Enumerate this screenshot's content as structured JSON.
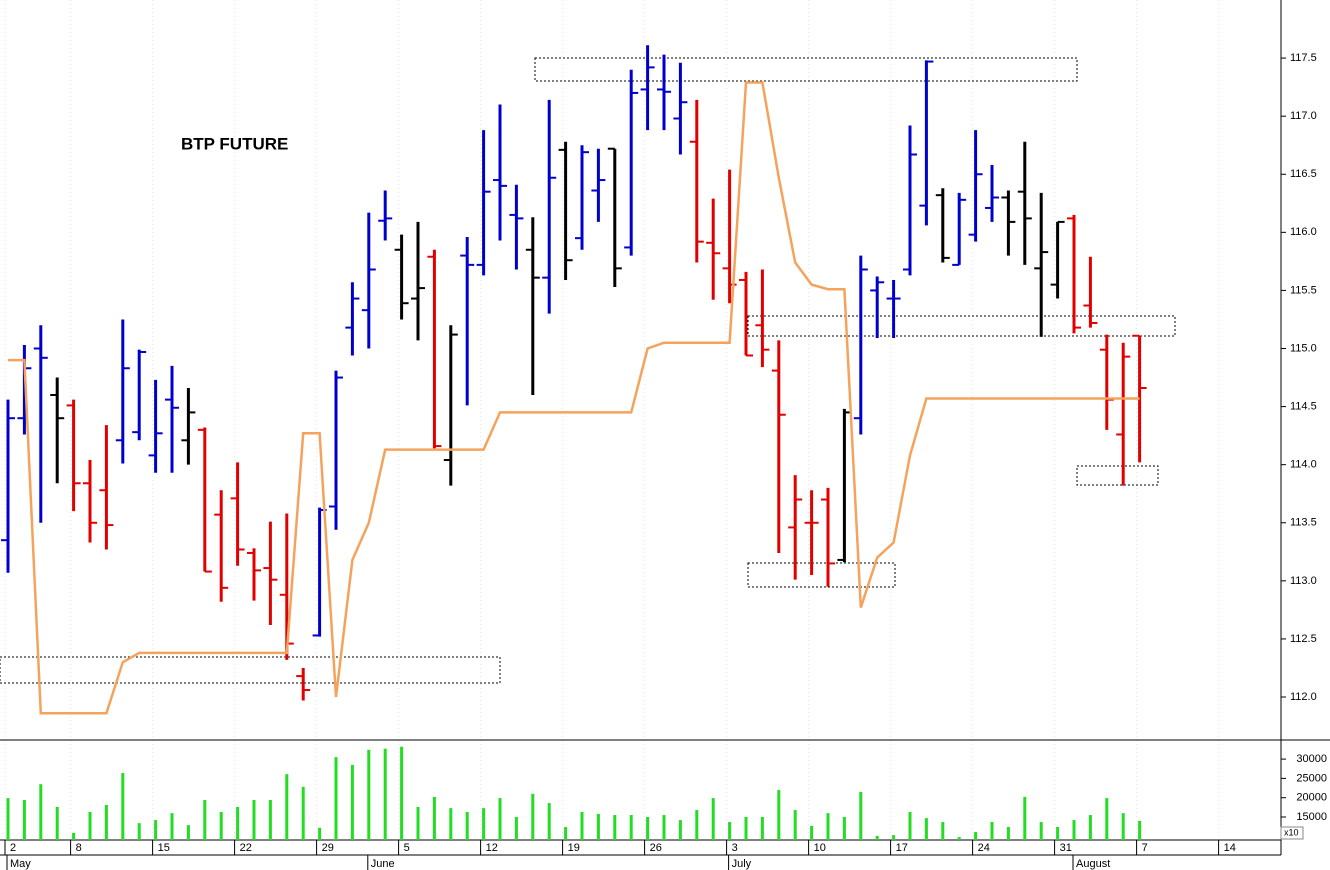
{
  "chart_data": [
    {
      "type": "ohlc",
      "title": "BTP FUTURE",
      "ylim": [
        111.63,
        118.0
      ],
      "yticks": [
        {
          "value": 112,
          "label": "112.0"
        },
        112.5,
        {
          "value": 113,
          "label": "113.0"
        },
        113.5,
        {
          "value": 114,
          "label": "114.0"
        },
        114.5,
        {
          "value": 115,
          "label": "115.0"
        },
        115.5,
        {
          "value": 116,
          "label": "116.0"
        },
        116.5,
        {
          "value": 117,
          "label": "117.0"
        },
        117.5
      ],
      "xgrid": true,
      "open": [
        113.35,
        114.4,
        115.0,
        114.6,
        114.51,
        113.84,
        113.78,
        114.21,
        114.28,
        114.08,
        114.56,
        114.21,
        114.3,
        113.57,
        113.71,
        113.24,
        113.11,
        112.88,
        112.18,
        112.53,
        113.64,
        115.18,
        115.33,
        116.1,
        115.85,
        115.43,
        115.79,
        114.04,
        115.8,
        115.72,
        116.45,
        116.15,
        115.85,
        115.61,
        116.71,
        115.95,
        116.36,
        116.72,
        115.87,
        117.23,
        117.23,
        116.98,
        116.78,
        115.91,
        115.69,
        115.59,
        115.2,
        114.81,
        113.46,
        113.5,
        113.7,
        113.18,
        114.4,
        115.5,
        115.43,
        115.68,
        116.23,
        116.32,
        115.72,
        115.98,
        116.21,
        116.3,
        116.35,
        115.69,
        115.55,
        116.12,
        115.37,
        114.99,
        114.26,
        115.11
      ],
      "high": [
        114.56,
        115.03,
        115.2,
        114.75,
        114.56,
        114.04,
        114.34,
        115.25,
        114.99,
        114.73,
        114.85,
        114.66,
        114.32,
        113.78,
        114.02,
        113.28,
        113.51,
        113.58,
        112.25,
        113.63,
        114.81,
        115.57,
        116.17,
        116.36,
        115.98,
        116.09,
        115.85,
        115.2,
        115.96,
        116.88,
        117.1,
        116.41,
        116.13,
        117.14,
        116.78,
        116.75,
        116.72,
        116.72,
        117.4,
        117.61,
        117.53,
        117.46,
        117.14,
        116.29,
        116.54,
        115.66,
        115.68,
        115.07,
        113.91,
        113.78,
        113.8,
        114.48,
        115.8,
        115.62,
        115.59,
        116.92,
        117.48,
        116.38,
        116.34,
        116.88,
        116.58,
        116.36,
        116.78,
        116.34,
        116.09,
        116.15,
        115.79,
        115.12,
        115.05,
        115.11
      ],
      "low": [
        113.07,
        114.26,
        113.5,
        113.84,
        113.6,
        113.33,
        113.27,
        114.01,
        114.21,
        113.93,
        113.93,
        114.0,
        113.08,
        112.82,
        113.13,
        112.83,
        112.62,
        112.32,
        111.97,
        112.52,
        113.44,
        114.94,
        115.0,
        115.93,
        115.25,
        115.07,
        114.14,
        113.82,
        114.51,
        115.63,
        115.93,
        115.68,
        114.6,
        115.3,
        115.59,
        115.85,
        116.09,
        115.53,
        115.8,
        116.88,
        116.88,
        116.67,
        115.74,
        115.42,
        115.39,
        114.94,
        114.84,
        113.24,
        113.01,
        113.05,
        112.95,
        113.16,
        114.26,
        115.09,
        115.09,
        115.63,
        116.06,
        115.74,
        115.72,
        115.92,
        116.09,
        115.8,
        115.72,
        115.1,
        115.43,
        115.13,
        115.18,
        114.3,
        113.82,
        114.02
      ],
      "close": [
        114.4,
        114.83,
        114.92,
        114.4,
        113.84,
        113.5,
        113.48,
        114.83,
        114.97,
        114.27,
        114.49,
        114.45,
        113.08,
        112.94,
        113.27,
        113.09,
        113.01,
        112.46,
        112.06,
        113.61,
        114.75,
        115.43,
        115.68,
        116.12,
        115.39,
        115.52,
        114.16,
        115.12,
        115.72,
        116.35,
        116.4,
        116.12,
        115.61,
        116.47,
        115.76,
        116.69,
        116.45,
        115.69,
        117.2,
        117.42,
        117.21,
        117.12,
        115.92,
        115.82,
        115.55,
        114.94,
        114.99,
        114.43,
        113.7,
        113.5,
        113.15,
        114.45,
        115.68,
        115.57,
        115.43,
        116.67,
        117.47,
        115.78,
        116.28,
        116.5,
        116.3,
        116.09,
        116.12,
        115.83,
        116.09,
        115.18,
        115.22,
        114.56,
        114.93,
        114.66
      ],
      "bar_colors": [
        "#0000cc",
        "#0000cc",
        "#0000cc",
        "#000000",
        "#e00000",
        "#e00000",
        "#e00000",
        "#0000cc",
        "#0000cc",
        "#0000cc",
        "#0000cc",
        "#000000",
        "#e00000",
        "#e00000",
        "#e00000",
        "#e00000",
        "#e00000",
        "#e00000",
        "#e00000",
        "#0000cc",
        "#0000cc",
        "#0000cc",
        "#0000cc",
        "#0000cc",
        "#000000",
        "#000000",
        "#e00000",
        "#000000",
        "#0000cc",
        "#0000cc",
        "#0000cc",
        "#0000cc",
        "#000000",
        "#0000cc",
        "#000000",
        "#0000cc",
        "#0000cc",
        "#000000",
        "#0000cc",
        "#0000cc",
        "#0000cc",
        "#0000cc",
        "#e00000",
        "#e00000",
        "#e00000",
        "#e00000",
        "#e00000",
        "#e00000",
        "#e00000",
        "#e00000",
        "#e00000",
        "#000000",
        "#0000cc",
        "#0000cc",
        "#0000cc",
        "#0000cc",
        "#0000cc",
        "#000000",
        "#0000cc",
        "#0000cc",
        "#0000cc",
        "#000000",
        "#000000",
        "#000000",
        "#000000",
        "#e00000",
        "#e00000",
        "#e00000",
        "#e00000",
        "#e00000"
      ],
      "overlay": {
        "color": "#f5a35c",
        "values": [
          114.9,
          114.9,
          111.86,
          111.86,
          111.86,
          111.86,
          111.86,
          112.3,
          112.38,
          112.38,
          112.38,
          112.38,
          112.38,
          112.38,
          112.38,
          112.38,
          112.38,
          112.38,
          114.27,
          114.27,
          112.0,
          113.18,
          113.5,
          114.13,
          114.13,
          114.13,
          114.13,
          114.13,
          114.13,
          114.13,
          114.45,
          114.45,
          114.45,
          114.45,
          114.45,
          114.45,
          114.45,
          114.45,
          114.45,
          115.0,
          115.05,
          115.05,
          115.05,
          115.05,
          115.05,
          117.29,
          117.29,
          116.47,
          115.74,
          115.55,
          115.51,
          115.51,
          112.77,
          113.2,
          113.33,
          114.08,
          114.57,
          114.57,
          114.57,
          114.57,
          114.57,
          114.57,
          114.57,
          114.57,
          114.57,
          114.57,
          114.57,
          114.57,
          114.57,
          114.57
        ]
      }
    },
    {
      "type": "bar",
      "color": "#22dd22",
      "scale_note": "x10",
      "ylim": [
        9040,
        34950
      ],
      "yticks": [
        15000,
        20000,
        25000,
        30000
      ],
      "categories": [
        "2",
        null,
        null,
        null,
        "8",
        null,
        null,
        null,
        null,
        "15",
        null,
        null,
        null,
        null,
        "22",
        null,
        null,
        null,
        null,
        "29",
        null,
        null,
        null,
        null,
        "5",
        null,
        null,
        null,
        null,
        "12",
        null,
        null,
        null,
        null,
        "19",
        null,
        null,
        null,
        null,
        "26",
        null,
        null,
        null,
        null,
        "3",
        null,
        null,
        null,
        null,
        "10",
        null,
        null,
        null,
        null,
        "17",
        null,
        null,
        null,
        null,
        "24",
        null,
        null,
        null,
        null,
        "31",
        null,
        null,
        null,
        null,
        "7",
        null,
        null,
        null,
        null,
        "14",
        null,
        null,
        null
      ],
      "months": [
        "May",
        null,
        null,
        null,
        null,
        null,
        null,
        null,
        null,
        null,
        null,
        null,
        null,
        null,
        null,
        null,
        null,
        null,
        null,
        null,
        null,
        null,
        "June",
        null,
        null,
        null,
        null,
        null,
        null,
        null,
        null,
        null,
        null,
        null,
        null,
        null,
        null,
        null,
        null,
        null,
        null,
        null,
        null,
        null,
        "July",
        null,
        null,
        null,
        null,
        null,
        null,
        null,
        null,
        null,
        null,
        null,
        null,
        null,
        null,
        null,
        null,
        null,
        null,
        null,
        null,
        "August",
        null,
        null,
        null,
        null,
        null,
        null,
        null,
        null,
        null,
        null,
        null,
        null
      ],
      "values": [
        19900,
        19400,
        23500,
        17600,
        10900,
        16300,
        18100,
        26400,
        13400,
        14200,
        16000,
        12900,
        19400,
        16300,
        17600,
        19400,
        19400,
        26100,
        22800,
        12200,
        30500,
        28500,
        32400,
        32700,
        33200,
        17600,
        20200,
        17300,
        16300,
        17300,
        19900,
        15000,
        21000,
        18600,
        12400,
        16300,
        15800,
        15500,
        15500,
        15000,
        15500,
        14200,
        16800,
        19900,
        13700,
        15000,
        15000,
        22000,
        16800,
        12700,
        16000,
        15000,
        21500,
        10100,
        10300,
        16300,
        14700,
        13700,
        9800,
        11100,
        13700,
        12400,
        20200,
        13700,
        12400,
        14200,
        15500,
        19900,
        16000,
        14000,
        null,
        null,
        null,
        null,
        null,
        null,
        null,
        null
      ]
    }
  ]
}
